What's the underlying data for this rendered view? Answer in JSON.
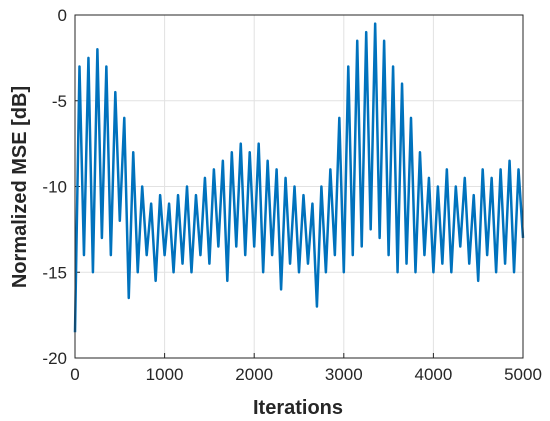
{
  "chart_data": {
    "type": "line",
    "xlabel": "Iterations",
    "ylabel": "Normalized MSE [dB]",
    "x": [
      0,
      50,
      100,
      150,
      200,
      250,
      300,
      350,
      400,
      450,
      500,
      550,
      600,
      650,
      700,
      750,
      800,
      850,
      900,
      950,
      1000,
      1050,
      1100,
      1150,
      1200,
      1250,
      1300,
      1350,
      1400,
      1450,
      1500,
      1550,
      1600,
      1650,
      1700,
      1750,
      1800,
      1850,
      1900,
      1950,
      2000,
      2050,
      2100,
      2150,
      2200,
      2250,
      2300,
      2350,
      2400,
      2450,
      2500,
      2550,
      2600,
      2650,
      2700,
      2750,
      2800,
      2850,
      2900,
      2950,
      3000,
      3050,
      3100,
      3150,
      3200,
      3250,
      3300,
      3350,
      3400,
      3450,
      3500,
      3550,
      3600,
      3650,
      3700,
      3750,
      3800,
      3850,
      3900,
      3950,
      4000,
      4050,
      4100,
      4150,
      4200,
      4250,
      4300,
      4350,
      4400,
      4450,
      4500,
      4550,
      4600,
      4650,
      4700,
      4750,
      4800,
      4850,
      4900,
      4950,
      5000
    ],
    "series": [
      {
        "color": "#0072BD",
        "values": [
          -18.5,
          -3,
          -14,
          -2.5,
          -15,
          -2,
          -13,
          -3,
          -14,
          -4.5,
          -12,
          -6,
          -16.5,
          -8,
          -15,
          -10,
          -14,
          -11,
          -15.5,
          -10.5,
          -14,
          -11,
          -15,
          -10.5,
          -14.5,
          -10,
          -15,
          -10.5,
          -14,
          -9.5,
          -14.5,
          -9,
          -13.5,
          -8.5,
          -15.5,
          -8,
          -13.5,
          -7.5,
          -14,
          -8,
          -13.5,
          -7.5,
          -15,
          -8.5,
          -14,
          -9,
          -16,
          -9.5,
          -14.5,
          -10,
          -15,
          -10.5,
          -14.5,
          -11,
          -17,
          -10,
          -15,
          -9,
          -14,
          -6,
          -15,
          -3,
          -14,
          -1.5,
          -13.5,
          -1,
          -12.5,
          -0.5,
          -13,
          -1.5,
          -14,
          -3,
          -15,
          -4,
          -14.5,
          -6,
          -15,
          -8,
          -14,
          -9.5,
          -15,
          -10,
          -14.5,
          -9,
          -15,
          -10,
          -13.5,
          -9.5,
          -14.5,
          -10.5,
          -15.5,
          -9,
          -14,
          -9.5,
          -15,
          -9,
          -14.5,
          -8.5,
          -15,
          -9,
          -13
        ]
      }
    ],
    "xlim": [
      0,
      5000
    ],
    "xticks": [
      0,
      1000,
      2000,
      3000,
      4000,
      5000
    ],
    "ylim": [
      -20,
      0
    ],
    "yticks": [
      -20,
      -15,
      -10,
      -5,
      0
    ],
    "grid": true
  }
}
